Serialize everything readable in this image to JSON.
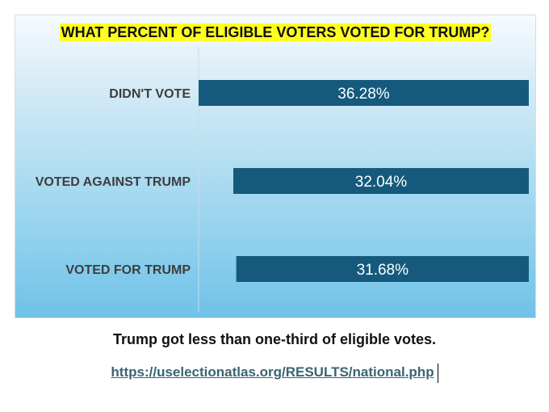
{
  "chart_data": {
    "type": "bar",
    "orientation": "horizontal",
    "title": "WHAT PERCENT OF ELIGIBLE VOTERS VOTED FOR TRUMP?",
    "categories": [
      "DIDN'T VOTE",
      "VOTED AGAINST TRUMP",
      "VOTED FOR TRUMP"
    ],
    "values": [
      36.28,
      32.04,
      31.68
    ],
    "value_labels": [
      "36.28%",
      "32.04%",
      "31.68%"
    ],
    "xlabel": "",
    "ylabel": "",
    "bar_color": "#155a7d",
    "grid": false
  },
  "caption": "Trump got less than one-third of eligible votes.",
  "source_link": "https://uselectionatlas.org/RESULTS/national.php"
}
